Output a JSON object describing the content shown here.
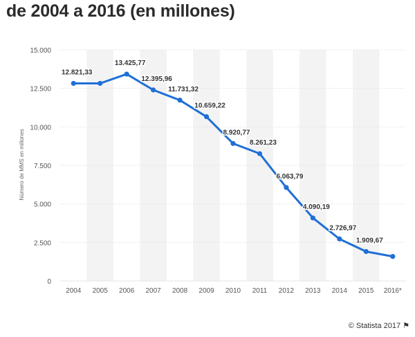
{
  "chart_data": {
    "type": "line",
    "title": "de 2004 a 2016 (en millones)",
    "xlabel": "",
    "ylabel": "Número de MMS en millones",
    "categories": [
      "2004",
      "2005",
      "2006",
      "2007",
      "2008",
      "2009",
      "2010",
      "2011",
      "2012",
      "2013",
      "2014",
      "2015",
      "2016*"
    ],
    "series": [
      {
        "name": "MMS",
        "values": [
          12821.33,
          12821.33,
          13425.77,
          12395.96,
          11731.32,
          10659.22,
          8920.77,
          8261.23,
          6063.79,
          4090.19,
          2726.97,
          1909.67,
          1590
        ],
        "labels": [
          "12.821,33",
          "",
          "13.425,77",
          "12.395,96",
          "11.731,32",
          "10.659,22",
          "8.920,77",
          "8.261,23",
          "6.063,79",
          "4.090,19",
          "2.726,97",
          "1.909,67",
          ""
        ]
      }
    ],
    "yticks": [
      0,
      2500,
      5000,
      7500,
      10000,
      12500,
      15000
    ],
    "ytick_labels": [
      "0",
      "2.500",
      "5.000",
      "7.500",
      "10.000",
      "12.500",
      "15.000"
    ],
    "ylim": [
      0,
      15000
    ],
    "grid": true,
    "line_color": "#1f6fd6",
    "band_color": "#f3f3f3",
    "grid_color": "#e4e4e4"
  },
  "credit": {
    "text": "© Statista 2017",
    "flag": "⚑"
  }
}
